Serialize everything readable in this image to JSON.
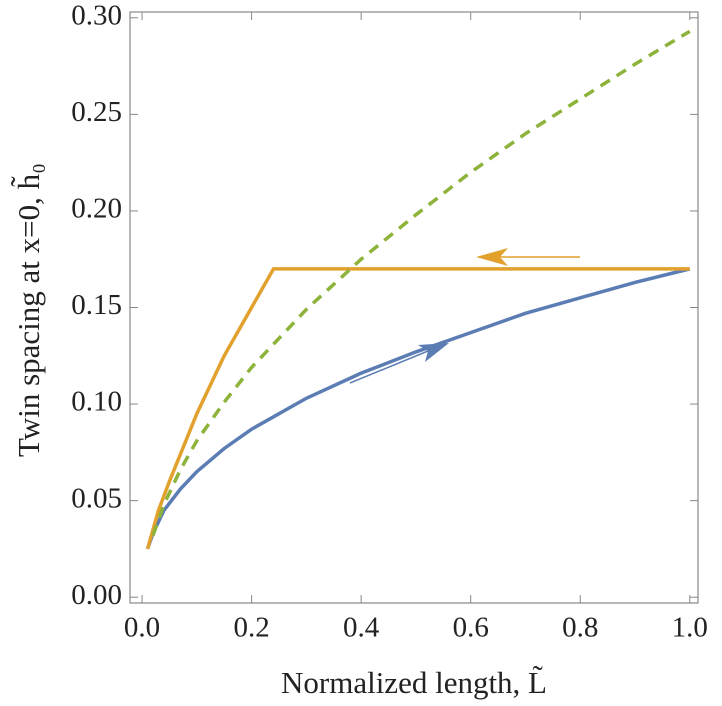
{
  "chart_data": {
    "type": "line",
    "xlabel": "Normalized length, L̃",
    "ylabel": "Twin spacing at x=0, h̃₀",
    "xlim": [
      -0.022,
      1.015
    ],
    "ylim": [
      -0.003,
      0.303
    ],
    "xticks": [
      {
        "value": 0,
        "label": "0.0"
      },
      0.2,
      0.4,
      0.6,
      0.8,
      {
        "value": 1,
        "label": "1.0"
      }
    ],
    "yticks": [
      {
        "value": 0,
        "label": "0.00"
      },
      0.05,
      {
        "value": 0.1,
        "label": "0.10"
      },
      0.15,
      {
        "value": 0.2,
        "label": "0.20"
      },
      0.25,
      {
        "value": 0.3,
        "label": "0.30"
      }
    ],
    "series": [
      {
        "color": "#5b7db4",
        "style": "solid",
        "x": [
          0.01,
          0.02,
          0.04,
          0.07,
          0.1,
          0.15,
          0.2,
          0.3,
          0.4,
          0.5,
          0.6,
          0.7,
          0.8,
          0.9,
          1.0
        ],
        "values": [
          0.025,
          0.033,
          0.045,
          0.056,
          0.065,
          0.077,
          0.087,
          0.103,
          0.116,
          0.127,
          0.137,
          0.147,
          0.155,
          0.163,
          0.17
        ]
      },
      {
        "color": "#e2a12d",
        "style": "solid",
        "x": [
          0.01,
          0.03,
          0.05,
          0.1,
          0.15,
          0.2,
          0.24,
          1.0
        ],
        "values": [
          0.025,
          0.045,
          0.06,
          0.095,
          0.125,
          0.15,
          0.17,
          0.17
        ]
      },
      {
        "color": "#8db33a",
        "style": "dashed",
        "x": [
          0.02,
          0.04,
          0.07,
          0.1,
          0.15,
          0.2,
          0.3,
          0.4,
          0.5,
          0.6,
          0.7,
          0.8,
          0.9,
          1.0
        ],
        "values": [
          0.032,
          0.048,
          0.066,
          0.081,
          0.101,
          0.119,
          0.149,
          0.175,
          0.198,
          0.22,
          0.24,
          0.258,
          0.276,
          0.293
        ]
      }
    ]
  }
}
